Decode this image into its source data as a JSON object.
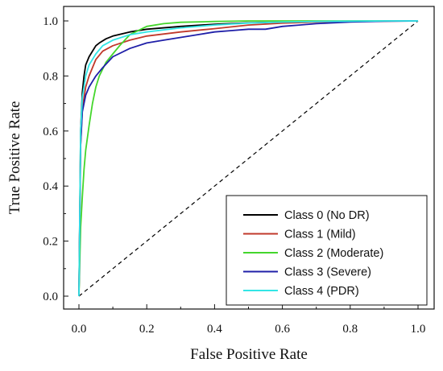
{
  "chart_data": {
    "type": "line",
    "title": "",
    "xlabel": "False Positive Rate",
    "ylabel": "True Positive Rate",
    "xlim": [
      0.0,
      1.0
    ],
    "ylim": [
      0.0,
      1.0
    ],
    "x_ticks": [
      "0.0",
      "0.2",
      "0.4",
      "0.6",
      "0.8",
      "1.0"
    ],
    "y_ticks": [
      "0.0",
      "0.2",
      "0.4",
      "0.6",
      "0.8",
      "1.0"
    ],
    "grid": false,
    "legend_position": "bottom-right",
    "reference_line": {
      "x": [
        0,
        1
      ],
      "y": [
        0,
        1
      ],
      "style": "dashed",
      "color": "#000000"
    },
    "series": [
      {
        "name": "Class 0 (No DR)",
        "color": "#000000",
        "x": [
          0,
          0.005,
          0.01,
          0.015,
          0.02,
          0.03,
          0.04,
          0.05,
          0.06,
          0.08,
          0.1,
          0.15,
          0.2,
          0.3,
          0.4,
          0.5,
          0.6,
          0.7,
          0.8,
          0.9,
          1.0
        ],
        "y": [
          0,
          0.6,
          0.74,
          0.8,
          0.84,
          0.87,
          0.89,
          0.91,
          0.92,
          0.935,
          0.945,
          0.96,
          0.97,
          0.98,
          0.988,
          0.993,
          0.996,
          0.998,
          0.999,
          1.0,
          1.0
        ]
      },
      {
        "name": "Class 1 (Mild)",
        "color": "#c0392b",
        "x": [
          0,
          0.005,
          0.01,
          0.02,
          0.03,
          0.04,
          0.05,
          0.07,
          0.1,
          0.15,
          0.2,
          0.3,
          0.4,
          0.5,
          0.6,
          0.7,
          0.8,
          0.9,
          1.0
        ],
        "y": [
          0,
          0.55,
          0.68,
          0.76,
          0.8,
          0.83,
          0.86,
          0.89,
          0.91,
          0.93,
          0.945,
          0.96,
          0.972,
          0.985,
          0.992,
          0.996,
          0.998,
          0.999,
          1.0
        ]
      },
      {
        "name": "Class 2 (Moderate)",
        "color": "#44d62c",
        "x": [
          0,
          0.005,
          0.01,
          0.015,
          0.02,
          0.03,
          0.04,
          0.05,
          0.06,
          0.08,
          0.1,
          0.12,
          0.15,
          0.2,
          0.25,
          0.3,
          0.4,
          0.5,
          0.6,
          0.8,
          1.0
        ],
        "y": [
          0,
          0.25,
          0.36,
          0.46,
          0.53,
          0.62,
          0.7,
          0.76,
          0.8,
          0.85,
          0.88,
          0.91,
          0.95,
          0.98,
          0.99,
          0.995,
          0.998,
          1.0,
          1.0,
          1.0,
          1.0
        ]
      },
      {
        "name": "Class 3 (Severe)",
        "color": "#1f1fa8",
        "x": [
          0,
          0.005,
          0.01,
          0.02,
          0.03,
          0.04,
          0.05,
          0.07,
          0.1,
          0.15,
          0.2,
          0.25,
          0.3,
          0.35,
          0.4,
          0.45,
          0.5,
          0.55,
          0.6,
          0.65,
          0.7,
          0.8,
          0.9,
          1.0
        ],
        "y": [
          0,
          0.55,
          0.67,
          0.73,
          0.76,
          0.78,
          0.8,
          0.83,
          0.87,
          0.9,
          0.92,
          0.93,
          0.94,
          0.95,
          0.96,
          0.965,
          0.97,
          0.97,
          0.98,
          0.985,
          0.99,
          0.996,
          0.999,
          1.0
        ]
      },
      {
        "name": "Class 4 (PDR)",
        "color": "#33e6e6",
        "x": [
          0,
          0.005,
          0.01,
          0.02,
          0.03,
          0.05,
          0.07,
          0.1,
          0.15,
          0.2,
          0.3,
          0.4,
          0.5,
          0.6,
          0.7,
          0.8,
          0.9,
          1.0
        ],
        "y": [
          0,
          0.6,
          0.72,
          0.8,
          0.84,
          0.88,
          0.91,
          0.93,
          0.95,
          0.96,
          0.975,
          0.985,
          0.992,
          0.996,
          0.998,
          0.999,
          1.0,
          1.0
        ]
      }
    ]
  }
}
